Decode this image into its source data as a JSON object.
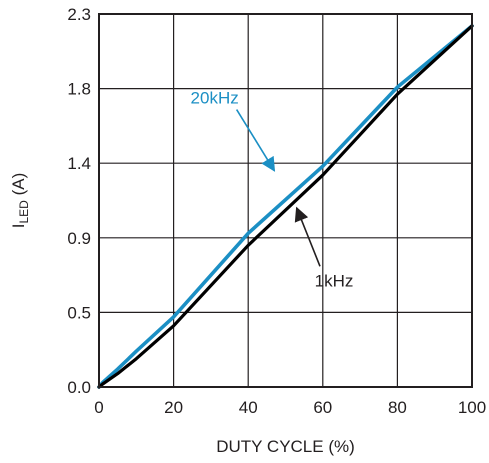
{
  "chart_data": {
    "type": "line",
    "title": "",
    "xlabel": "DUTY CYCLE (%)",
    "ylabel": {
      "main": "I",
      "subscript": "LED",
      "unit": " (A)"
    },
    "xlim": [
      0,
      100
    ],
    "ylim": [
      0,
      2.3
    ],
    "x_ticks": [
      0,
      20,
      40,
      60,
      80,
      100
    ],
    "x_tick_labels": [
      "0",
      "20",
      "40",
      "60",
      "80",
      "100"
    ],
    "y_ticks": [
      0.0,
      0.5,
      0.9,
      1.4,
      1.8,
      2.3
    ],
    "y_tick_labels": [
      "0.0",
      "0.5",
      "0.9",
      "1.4",
      "1.8",
      "2.3"
    ],
    "grid": true,
    "series": [
      {
        "name": "1kHz",
        "color": "#000000",
        "x": [
          0,
          1,
          5,
          10,
          20,
          40,
          60,
          80,
          100
        ],
        "y": [
          0.0,
          0.02,
          0.09,
          0.19,
          0.41,
          0.86,
          1.32,
          1.77,
          2.22
        ]
      },
      {
        "name": "20kHz",
        "color": "#1b8fc4",
        "x": [
          0,
          1,
          5,
          10,
          20,
          40,
          60,
          80,
          100
        ],
        "y": [
          0.0,
          0.03,
          0.12,
          0.24,
          0.47,
          0.93,
          1.38,
          1.81,
          2.22
        ]
      }
    ],
    "annotations": [
      {
        "text": "20kHz",
        "series": "20kHz",
        "color": "#1b8fc4",
        "text_at": [
          31,
          1.72
        ],
        "arrow_to": [
          47,
          1.35
        ]
      },
      {
        "text": "1kHz",
        "series": "1kHz",
        "color": "#231f20",
        "text_at": [
          63,
          0.64
        ],
        "arrow_to": [
          53,
          1.1
        ]
      }
    ]
  }
}
